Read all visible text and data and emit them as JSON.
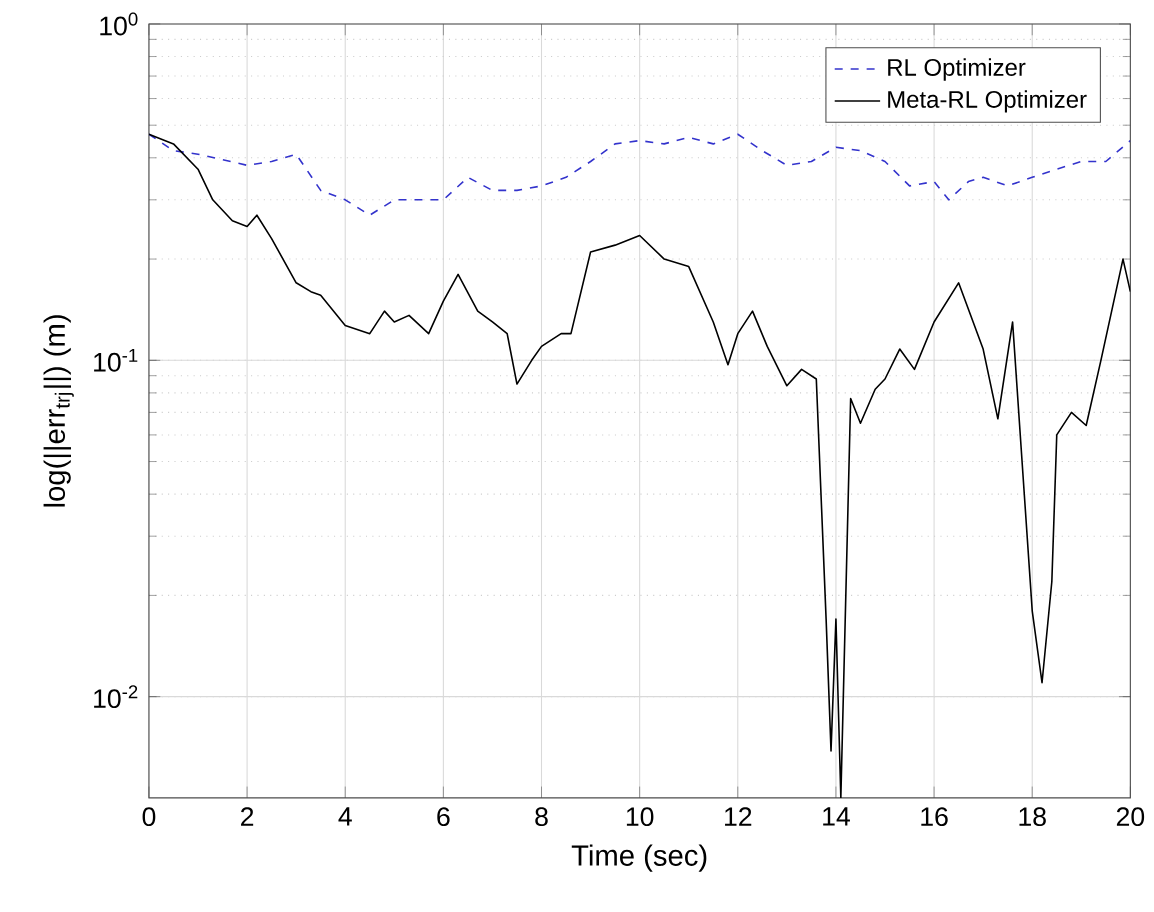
{
  "chart_data": {
    "type": "line",
    "xlabel": "Time (sec)",
    "ylabel": "log(||err$_{trj}$||) (m)",
    "log": true,
    "grid": true,
    "legend": "top right",
    "xlim": [
      0,
      20
    ],
    "xticks": [
      0,
      2,
      4,
      6,
      8,
      10,
      12,
      14,
      16,
      18,
      20
    ],
    "ylim": [
      0.005,
      1
    ],
    "yticks": [
      {
        "value": 0.01,
        "label": "10$^{-2}$"
      },
      {
        "value": 0.1,
        "label": "10$^{-1}$"
      },
      {
        "value": 1,
        "label": "10$^{0}$"
      }
    ],
    "series": [
      {
        "name": "RL Optimizer",
        "color": "#3333cc",
        "line_style": "dashed",
        "x": [
          0,
          0.5,
          1,
          2,
          2.5,
          3,
          3.5,
          4,
          4.5,
          5,
          5.5,
          6,
          6.5,
          7,
          7.5,
          8,
          8.5,
          9,
          9.5,
          10,
          10.5,
          11,
          11.5,
          12,
          12.5,
          13,
          13.5,
          14,
          14.5,
          15,
          15.5,
          16,
          16.3,
          16.7,
          17,
          17.5,
          18,
          18.5,
          19,
          19.5,
          20
        ],
        "values": [
          0.47,
          0.42,
          0.41,
          0.38,
          0.39,
          0.41,
          0.32,
          0.3,
          0.27,
          0.3,
          0.3,
          0.3,
          0.35,
          0.32,
          0.32,
          0.33,
          0.35,
          0.39,
          0.44,
          0.45,
          0.44,
          0.46,
          0.44,
          0.47,
          0.42,
          0.38,
          0.39,
          0.43,
          0.42,
          0.39,
          0.33,
          0.34,
          0.3,
          0.34,
          0.35,
          0.33,
          0.35,
          0.37,
          0.39,
          0.39,
          0.45
        ]
      },
      {
        "name": "Meta-RL Optimizer",
        "color": "#000000",
        "line_style": "solid",
        "x": [
          0,
          0.5,
          1,
          1.3,
          1.7,
          2,
          2.2,
          2.5,
          3,
          3.3,
          3.5,
          4,
          4.5,
          4.8,
          5,
          5.3,
          5.7,
          6,
          6.3,
          6.7,
          7,
          7.3,
          7.5,
          7.8,
          8,
          8.4,
          8.6,
          9,
          9.5,
          10,
          10.5,
          11,
          11.5,
          11.8,
          12,
          12.3,
          12.6,
          13,
          13.3,
          13.6,
          13.8,
          13.9,
          14,
          14.1,
          14.3,
          14.5,
          14.8,
          15,
          15.3,
          15.6,
          16,
          16.5,
          17,
          17.3,
          17.6,
          18,
          18.2,
          18.4,
          18.5,
          18.8,
          19.1,
          19.4,
          19.85,
          20
        ],
        "values": [
          0.47,
          0.44,
          0.37,
          0.3,
          0.26,
          0.25,
          0.27,
          0.23,
          0.17,
          0.16,
          0.156,
          0.127,
          0.12,
          0.14,
          0.13,
          0.136,
          0.12,
          0.15,
          0.18,
          0.14,
          0.13,
          0.12,
          0.085,
          0.1,
          0.11,
          0.12,
          0.12,
          0.21,
          0.22,
          0.235,
          0.2,
          0.19,
          0.13,
          0.097,
          0.12,
          0.14,
          0.11,
          0.084,
          0.094,
          0.088,
          0.017,
          0.0069,
          0.017,
          0.005,
          0.077,
          0.065,
          0.082,
          0.088,
          0.108,
          0.094,
          0.13,
          0.17,
          0.108,
          0.067,
          0.13,
          0.018,
          0.011,
          0.022,
          0.06,
          0.07,
          0.064,
          0.1,
          0.2,
          0.16
        ]
      }
    ]
  }
}
